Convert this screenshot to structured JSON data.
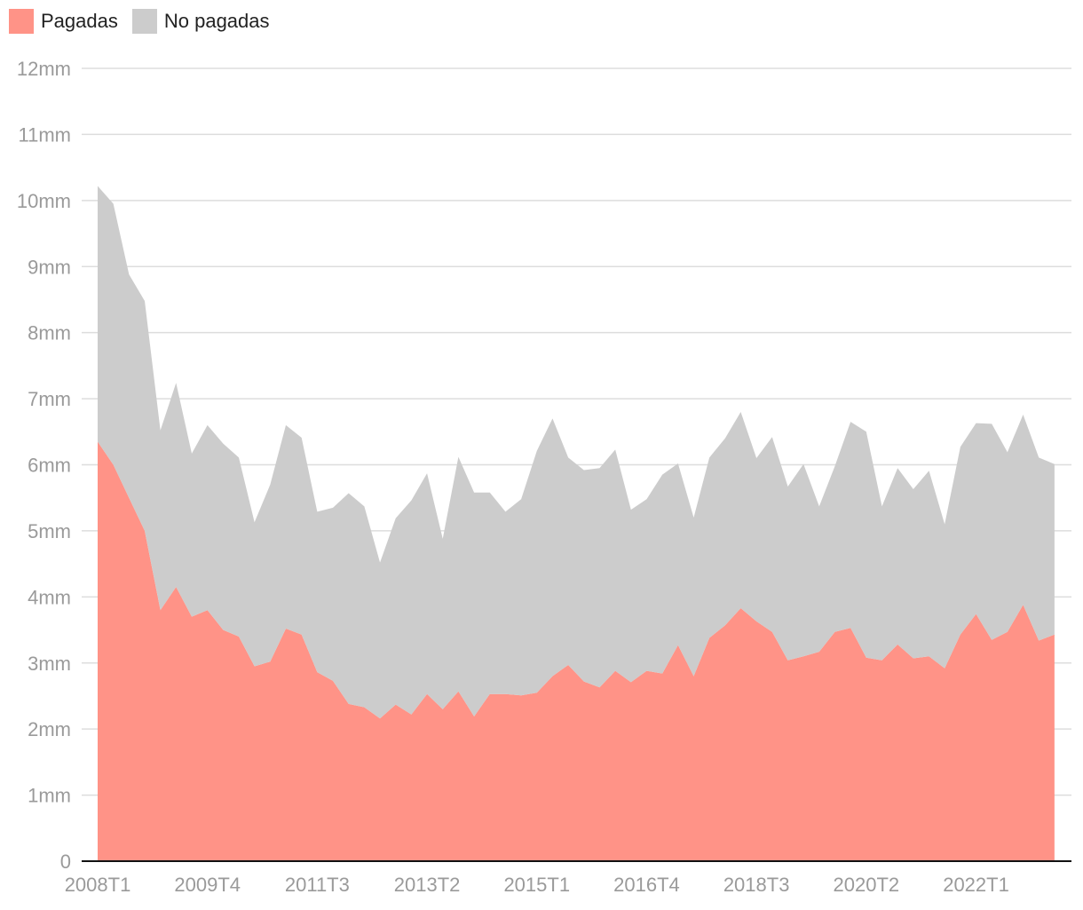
{
  "chart_data": {
    "type": "area",
    "stacked": true,
    "title": "",
    "xlabel": "",
    "ylabel": "",
    "ylim": [
      0,
      12
    ],
    "y_ticks": [
      {
        "value": 0,
        "label": "0"
      },
      {
        "value": 1,
        "label": "1mm"
      },
      {
        "value": 2,
        "label": "2mm"
      },
      {
        "value": 3,
        "label": "3mm"
      },
      {
        "value": 4,
        "label": "4mm"
      },
      {
        "value": 5,
        "label": "5mm"
      },
      {
        "value": 6,
        "label": "6mm"
      },
      {
        "value": 7,
        "label": "7mm"
      },
      {
        "value": 8,
        "label": "8mm"
      },
      {
        "value": 9,
        "label": "9mm"
      },
      {
        "value": 10,
        "label": "10mm"
      },
      {
        "value": 11,
        "label": "11mm"
      },
      {
        "value": 12,
        "label": "12mm"
      }
    ],
    "x_tick_labels": [
      "2008T1",
      "2009T4",
      "2011T3",
      "2013T2",
      "2015T1",
      "2016T4",
      "2018T3",
      "2020T2",
      "2022T1"
    ],
    "grid": true,
    "legend_position": "top-left",
    "categories": [
      "2008T1",
      "2008T2",
      "2008T3",
      "2008T4",
      "2009T1",
      "2009T2",
      "2009T3",
      "2009T4",
      "2010T1",
      "2010T2",
      "2010T3",
      "2010T4",
      "2011T1",
      "2011T2",
      "2011T3",
      "2011T4",
      "2012T1",
      "2012T2",
      "2012T3",
      "2012T4",
      "2013T1",
      "2013T2",
      "2013T3",
      "2013T4",
      "2014T1",
      "2014T2",
      "2014T3",
      "2014T4",
      "2015T1",
      "2015T2",
      "2015T3",
      "2015T4",
      "2016T1",
      "2016T2",
      "2016T3",
      "2016T4",
      "2017T1",
      "2017T2",
      "2017T3",
      "2017T4",
      "2018T1",
      "2018T2",
      "2018T3",
      "2018T4",
      "2019T1",
      "2019T2",
      "2019T3",
      "2019T4",
      "2020T1",
      "2020T2",
      "2020T3",
      "2020T4",
      "2021T1",
      "2021T2",
      "2021T3",
      "2021T4",
      "2022T1",
      "2022T2",
      "2022T3",
      "2022T4",
      "2023T1",
      "2023T2"
    ],
    "series": [
      {
        "name": "Pagadas",
        "color": "#ff9387",
        "values": [
          6.35,
          6.0,
          5.5,
          5.0,
          3.8,
          4.15,
          3.7,
          3.8,
          3.5,
          3.4,
          2.95,
          3.02,
          3.52,
          3.43,
          2.86,
          2.73,
          2.38,
          2.33,
          2.16,
          2.37,
          2.22,
          2.53,
          2.3,
          2.57,
          2.19,
          2.53,
          2.53,
          2.51,
          2.55,
          2.8,
          2.97,
          2.72,
          2.63,
          2.88,
          2.71,
          2.88,
          2.84,
          3.27,
          2.8,
          3.38,
          3.57,
          3.83,
          3.63,
          3.47,
          3.04,
          3.1,
          3.17,
          3.47,
          3.53,
          3.08,
          3.04,
          3.28,
          3.07,
          3.1,
          2.92,
          3.43,
          3.74,
          3.35,
          3.47,
          3.88,
          3.34,
          3.43
        ]
      },
      {
        "name": "No pagadas",
        "color": "#cccccc",
        "values": [
          3.87,
          3.95,
          3.38,
          3.48,
          2.72,
          3.09,
          2.47,
          2.8,
          2.82,
          2.71,
          2.18,
          2.68,
          3.08,
          2.98,
          2.43,
          2.62,
          3.19,
          3.04,
          2.36,
          2.82,
          3.24,
          3.34,
          2.58,
          3.55,
          3.39,
          3.05,
          2.76,
          2.97,
          3.66,
          3.9,
          3.14,
          3.2,
          3.32,
          3.35,
          2.61,
          2.6,
          3.01,
          2.75,
          2.4,
          2.73,
          2.83,
          2.97,
          2.47,
          2.95,
          2.63,
          2.91,
          2.2,
          2.51,
          3.12,
          3.42,
          2.33,
          2.67,
          2.56,
          2.81,
          2.18,
          2.84,
          2.89,
          3.27,
          2.72,
          2.88,
          2.77,
          2.58
        ]
      }
    ]
  }
}
